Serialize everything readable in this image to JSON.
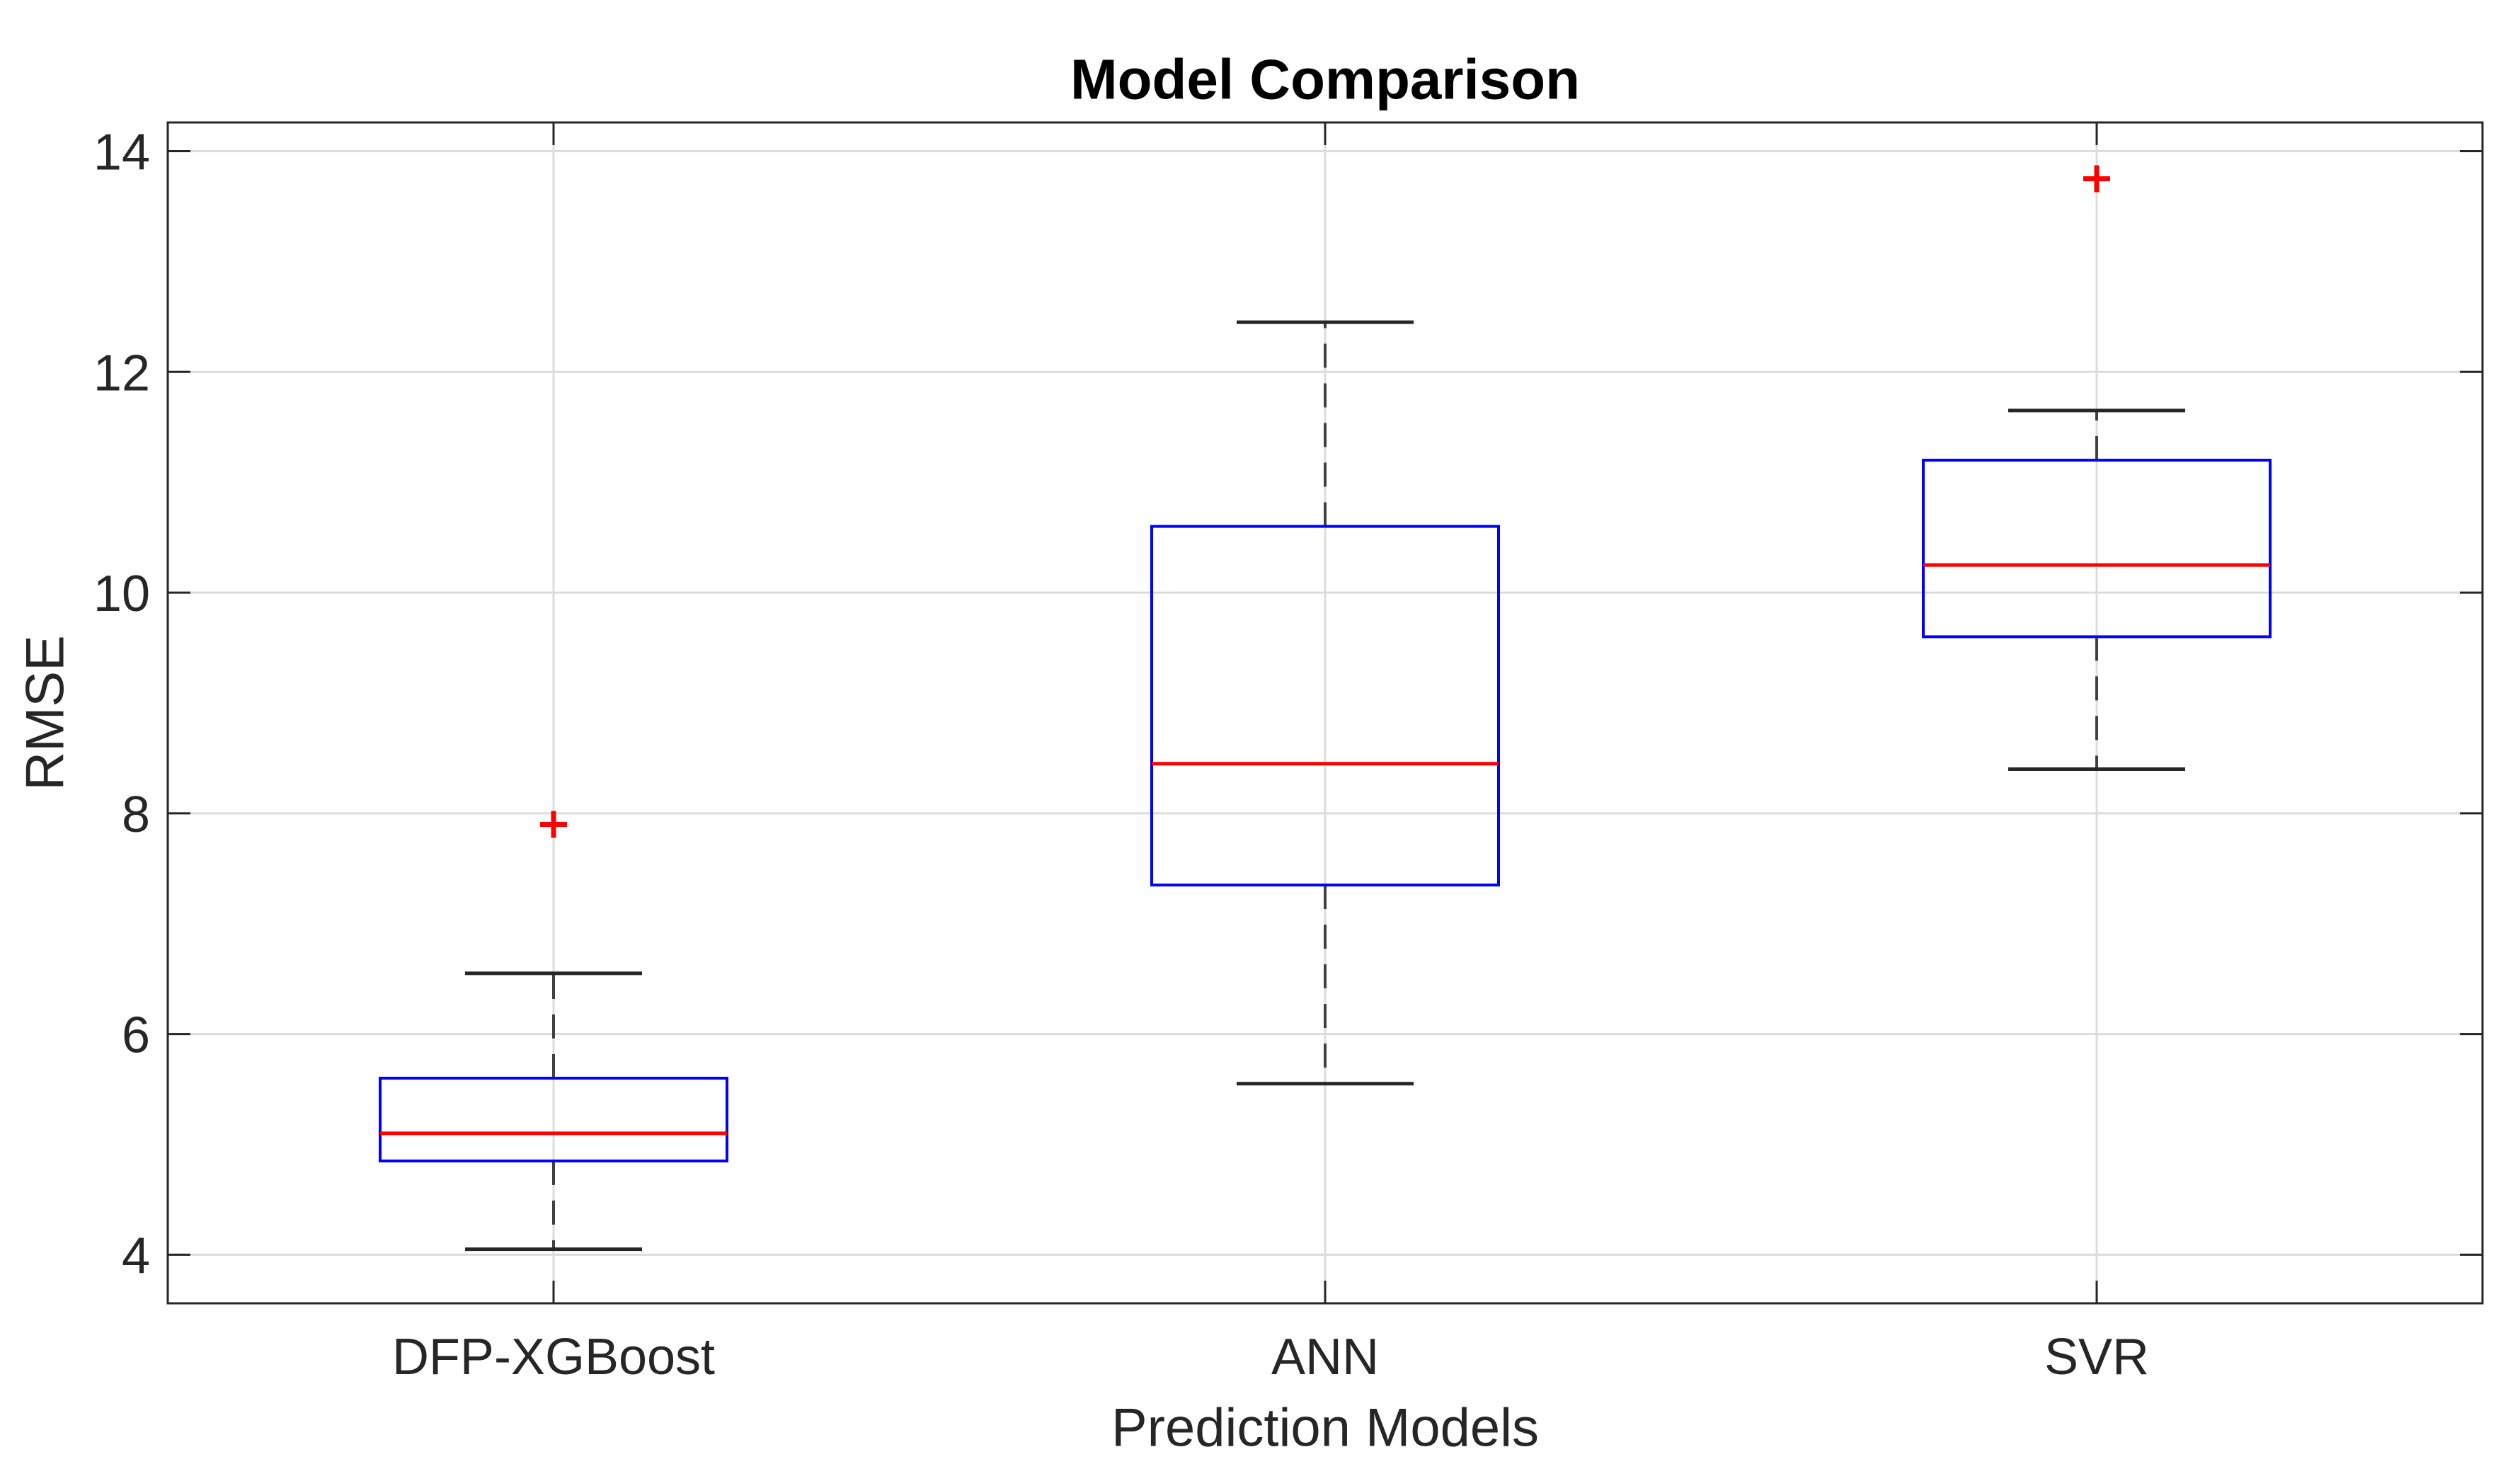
{
  "chart_data": {
    "type": "boxplot",
    "title": "Model Comparison",
    "xlabel": "Prediction Models",
    "ylabel": "RMSE",
    "categories": [
      "DFP-XGBoost",
      "ANN",
      "SVR"
    ],
    "boxes": [
      {
        "label": "DFP-XGBoost",
        "whisker_low": 4.05,
        "q1": 4.85,
        "median": 5.1,
        "q3": 5.6,
        "whisker_high": 6.55,
        "outliers": [
          7.9
        ]
      },
      {
        "label": "ANN",
        "whisker_low": 5.55,
        "q1": 7.35,
        "median": 8.45,
        "q3": 10.6,
        "whisker_high": 12.45,
        "outliers": []
      },
      {
        "label": "SVR",
        "whisker_low": 8.4,
        "q1": 9.6,
        "median": 10.25,
        "q3": 11.2,
        "whisker_high": 11.65,
        "outliers": [
          13.75
        ]
      }
    ],
    "yticks": [
      4,
      6,
      8,
      10,
      12,
      14
    ],
    "ylim": [
      3.56,
      14.26
    ],
    "grid": true,
    "legend_position": "none",
    "colors": {
      "box_edge": "#0000ff",
      "median": "#ff0000",
      "outlier": "#ff0000",
      "whisker": "#404040",
      "cap": "#262626",
      "grid": "#dcdcdc",
      "axis": "#262626",
      "text": "#262626",
      "background": "#ffffff"
    }
  }
}
